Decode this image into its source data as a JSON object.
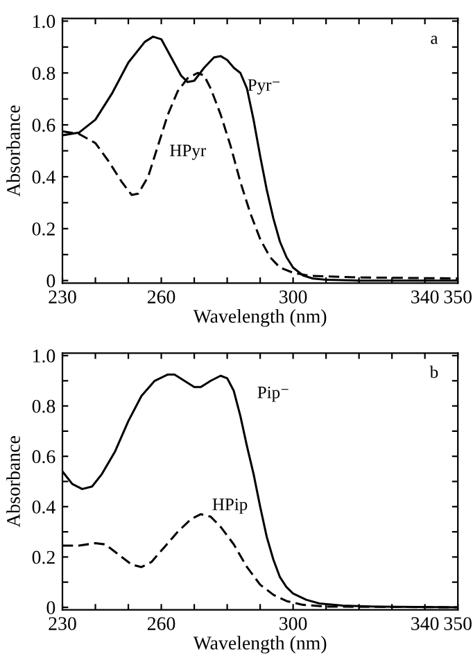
{
  "chart_data": [
    {
      "type": "line",
      "xlabel": "Wavelength (nm)",
      "ylabel": "Absorbance",
      "xlim": [
        230,
        350
      ],
      "ylim": [
        -0.01,
        1.01
      ],
      "xticks": [
        230,
        {
          "value": 240,
          "label": null
        },
        {
          "value": 250,
          "label": null
        },
        260,
        {
          "value": 270,
          "label": null
        },
        {
          "value": 280,
          "label": null
        },
        {
          "value": 290,
          "label": null
        },
        300,
        {
          "value": 310,
          "label": null
        },
        {
          "value": 320,
          "label": null
        },
        {
          "value": 330,
          "label": null
        },
        340,
        350
      ],
      "yticks": [
        0,
        {
          "value": 0.1,
          "label": null
        },
        {
          "value": 0.2,
          "label": "0.2"
        },
        {
          "value": 0.3,
          "label": null
        },
        {
          "value": 0.4,
          "label": "0.4"
        },
        {
          "value": 0.5,
          "label": null
        },
        {
          "value": 0.6,
          "label": "0.6"
        },
        {
          "value": 0.7,
          "label": null
        },
        {
          "value": 0.8,
          "label": "0.8"
        },
        {
          "value": 0.9,
          "label": null
        },
        {
          "value": 1.0,
          "label": "1.0"
        }
      ],
      "grid": false,
      "legend": false,
      "series": [
        {
          "name": "Pyr⁻",
          "color": "#000000",
          "line_style": "solid",
          "x": [
            230,
            235,
            240,
            245,
            250,
            255,
            257.5,
            260,
            263,
            266,
            268,
            270,
            273,
            276,
            278,
            280,
            282,
            284,
            286,
            288,
            290,
            292,
            294,
            296,
            298,
            300,
            303,
            306,
            310,
            320,
            350
          ],
          "values": [
            0.56,
            0.57,
            0.62,
            0.72,
            0.84,
            0.92,
            0.94,
            0.93,
            0.86,
            0.79,
            0.765,
            0.77,
            0.82,
            0.86,
            0.865,
            0.85,
            0.82,
            0.8,
            0.74,
            0.62,
            0.48,
            0.35,
            0.24,
            0.15,
            0.09,
            0.05,
            0.02,
            0.008,
            0.003,
            0,
            0
          ]
        },
        {
          "name": "HPyr",
          "color": "#000000",
          "line_style": "dashed",
          "x": [
            230,
            235,
            240,
            244,
            248,
            251,
            253,
            256,
            259,
            262,
            265,
            268,
            271,
            273,
            275,
            278,
            281,
            284,
            287,
            290,
            293,
            296,
            300,
            305,
            320,
            350
          ],
          "values": [
            0.575,
            0.565,
            0.53,
            0.46,
            0.38,
            0.33,
            0.335,
            0.4,
            0.52,
            0.64,
            0.73,
            0.78,
            0.8,
            0.79,
            0.74,
            0.64,
            0.52,
            0.38,
            0.26,
            0.16,
            0.09,
            0.05,
            0.03,
            0.018,
            0.012,
            0.008
          ]
        }
      ],
      "annotations": [
        "a"
      ]
    },
    {
      "type": "line",
      "xlabel": "Wavelength (nm)",
      "ylabel": "Absorbance",
      "xlim": [
        230,
        350
      ],
      "ylim": [
        -0.01,
        1.01
      ],
      "xticks": [
        230,
        {
          "value": 240,
          "label": null
        },
        {
          "value": 250,
          "label": null
        },
        260,
        {
          "value": 270,
          "label": null
        },
        {
          "value": 280,
          "label": null
        },
        {
          "value": 290,
          "label": null
        },
        300,
        {
          "value": 310,
          "label": null
        },
        {
          "value": 320,
          "label": null
        },
        {
          "value": 330,
          "label": null
        },
        340,
        350
      ],
      "yticks": [
        0,
        {
          "value": 0.1,
          "label": null
        },
        {
          "value": 0.2,
          "label": "0.2"
        },
        {
          "value": 0.3,
          "label": null
        },
        {
          "value": 0.4,
          "label": "0.4"
        },
        {
          "value": 0.5,
          "label": null
        },
        {
          "value": 0.6,
          "label": "0.6"
        },
        {
          "value": 0.7,
          "label": null
        },
        {
          "value": 0.8,
          "label": "0.8"
        },
        {
          "value": 0.9,
          "label": null
        },
        {
          "value": 1.0,
          "label": "1.0"
        }
      ],
      "grid": false,
      "legend": false,
      "series": [
        {
          "name": "Pip⁻",
          "color": "#000000",
          "line_style": "solid",
          "x": [
            230,
            233,
            236,
            239,
            242,
            246,
            250,
            254,
            258,
            262,
            264,
            267,
            270,
            272,
            275,
            278,
            280,
            282,
            284,
            286,
            288,
            290,
            292,
            294,
            296,
            298,
            300,
            304,
            308,
            315,
            325,
            350
          ],
          "values": [
            0.54,
            0.49,
            0.47,
            0.48,
            0.53,
            0.62,
            0.74,
            0.84,
            0.9,
            0.925,
            0.925,
            0.9,
            0.875,
            0.875,
            0.9,
            0.92,
            0.91,
            0.86,
            0.76,
            0.64,
            0.53,
            0.4,
            0.28,
            0.19,
            0.12,
            0.08,
            0.055,
            0.03,
            0.015,
            0.007,
            0.003,
            0
          ]
        },
        {
          "name": "HPip",
          "color": "#000000",
          "line_style": "dashed",
          "x": [
            230,
            235,
            240,
            243,
            247,
            251,
            254,
            257,
            261,
            265,
            269,
            272,
            275,
            278,
            282,
            286,
            290,
            294,
            298,
            303,
            310,
            350
          ],
          "values": [
            0.245,
            0.245,
            0.255,
            0.25,
            0.21,
            0.17,
            0.16,
            0.18,
            0.24,
            0.3,
            0.35,
            0.37,
            0.36,
            0.32,
            0.25,
            0.16,
            0.09,
            0.05,
            0.025,
            0.01,
            0.003,
            0
          ]
        }
      ],
      "annotations": [
        "b"
      ]
    }
  ]
}
